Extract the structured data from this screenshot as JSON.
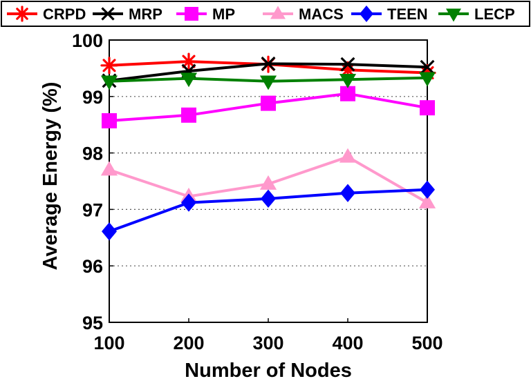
{
  "chart_data": {
    "type": "line",
    "title": "",
    "xlabel": "Number of Nodes",
    "ylabel": "Average Energy (%)",
    "x": [
      100,
      200,
      300,
      400,
      500
    ],
    "x_ticks": [
      "100",
      "200",
      "300",
      "400",
      "500"
    ],
    "y_ticks": [
      "95",
      "96",
      "97",
      "98",
      "99",
      "100"
    ],
    "xlim": [
      100,
      500
    ],
    "ylim": [
      95,
      100
    ],
    "grid": "horizontal dotted",
    "legend": "top",
    "series": [
      {
        "name": "CRPD",
        "color": "#ff0000",
        "marker": "asterisk",
        "values": [
          99.55,
          99.62,
          99.57,
          99.47,
          99.42
        ]
      },
      {
        "name": "MRP",
        "color": "#000000",
        "marker": "x",
        "values": [
          99.28,
          99.45,
          99.58,
          99.57,
          99.52
        ]
      },
      {
        "name": "MP",
        "color": "#ff00ff",
        "marker": "square",
        "values": [
          98.57,
          98.67,
          98.88,
          99.05,
          98.8
        ]
      },
      {
        "name": "MACS",
        "color": "#ff99cc",
        "marker": "triangle-up",
        "values": [
          97.7,
          97.23,
          97.45,
          97.93,
          97.12
        ]
      },
      {
        "name": "TEEN",
        "color": "#0000ff",
        "marker": "diamond",
        "values": [
          96.61,
          97.12,
          97.19,
          97.29,
          97.35
        ]
      },
      {
        "name": "LECP",
        "color": "#008000",
        "marker": "triangle-down",
        "values": [
          99.27,
          99.32,
          99.27,
          99.3,
          99.33
        ]
      }
    ]
  }
}
